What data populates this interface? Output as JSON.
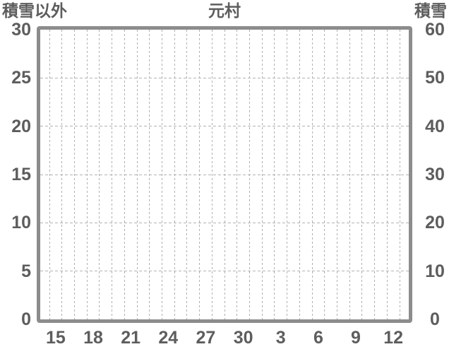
{
  "header": {
    "left_axis_title": "積雪以外",
    "chart_title": "元村",
    "right_axis_title": "積雪"
  },
  "chart_data": {
    "type": "line",
    "title": "元村",
    "series": [],
    "plot_state": "empty (no data series drawn)",
    "y_axis_left": {
      "title": "積雪以外",
      "ticks": [
        "30",
        "25",
        "20",
        "15",
        "10",
        "5",
        "0"
      ],
      "range": [
        0,
        30
      ],
      "tick_step": 5
    },
    "y_axis_right": {
      "title": "積雪",
      "ticks": [
        "60",
        "50",
        "40",
        "30",
        "20",
        "10",
        "0"
      ],
      "range": [
        0,
        60
      ],
      "tick_step": 10
    },
    "x_axis": {
      "tick_labels": [
        "15",
        "18",
        "21",
        "24",
        "27",
        "30",
        "3",
        "6",
        "9",
        "12"
      ],
      "unit": "day of month (spans month boundary)",
      "columns": 30,
      "label_every_days": 3
    },
    "grid": {
      "style": "dashed",
      "vertical_lines": 29,
      "horizontal_lines": 5,
      "legend": "none"
    },
    "colors": {
      "text": "#5d5d5d",
      "border": "#8c8c8c",
      "gridline": "#b0b0b0",
      "background": "#ffffff"
    }
  }
}
